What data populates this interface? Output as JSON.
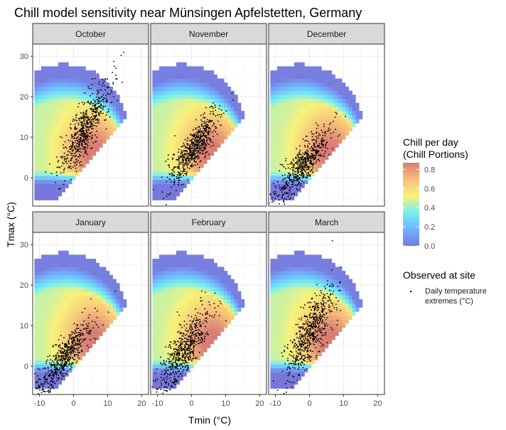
{
  "chart_data": {
    "type": "heatmap",
    "title": "Chill model sensitivity near Münsingen Apfelstetten, Germany",
    "xlabel": "Tmin (°C)",
    "ylabel": "Tmax (°C)",
    "xlim": [
      -12,
      22
    ],
    "ylim": [
      -7,
      33
    ],
    "x_ticks": [
      -10,
      0,
      10,
      20
    ],
    "y_ticks": [
      0,
      10,
      20,
      30
    ],
    "x_tick_labels": [
      "-10",
      "0",
      "10",
      "20"
    ],
    "y_tick_labels": [
      "0",
      "10",
      "20",
      "30"
    ],
    "grid": true,
    "facets": [
      {
        "name": "October",
        "tmin_mean": 3.5,
        "tmax_mean": 12,
        "tmin_sd": 3.5,
        "tmax_sd": 5.5,
        "corr": 0.8
      },
      {
        "name": "November",
        "tmin_mean": 0.5,
        "tmax_mean": 7,
        "tmin_sd": 3.5,
        "tmax_sd": 4.5,
        "corr": 0.82
      },
      {
        "name": "December",
        "tmin_mean": -2,
        "tmax_mean": 3,
        "tmin_sd": 4,
        "tmax_sd": 4.5,
        "corr": 0.85
      },
      {
        "name": "January",
        "tmin_mean": -3,
        "tmax_mean": 2,
        "tmin_sd": 4,
        "tmax_sd": 4.5,
        "corr": 0.85
      },
      {
        "name": "February",
        "tmin_mean": -2,
        "tmax_mean": 4,
        "tmin_sd": 3.8,
        "tmax_sd": 5.5,
        "corr": 0.82
      },
      {
        "name": "March",
        "tmin_mean": 0,
        "tmax_mean": 8,
        "tmin_sd": 3.5,
        "tmax_sd": 5.5,
        "corr": 0.78
      }
    ],
    "heat_surface": {
      "tmin_range": [
        -11,
        20
      ],
      "tmax_range": [
        -5,
        30
      ],
      "max_chill": 0.85,
      "peak_tmin": 6,
      "peak_tmax": 6
    },
    "legend_fill": {
      "title_line1": "Chill per day",
      "title_line2": "(Chill Portions)",
      "ticks": [
        0.0,
        0.2,
        0.4,
        0.6,
        0.8
      ],
      "tick_labels": [
        "0.0",
        "0.2",
        "0.4",
        "0.6",
        "0.8"
      ],
      "range": [
        0,
        0.87
      ],
      "colors": [
        "#7878dc",
        "#6fb3ff",
        "#74f0f0",
        "#f8f27a",
        "#f6c07a",
        "#d97e75"
      ]
    },
    "legend_points": {
      "title": "Observed at site",
      "label_line1": "Daily temperature",
      "label_line2": "extremes (°C)"
    }
  }
}
